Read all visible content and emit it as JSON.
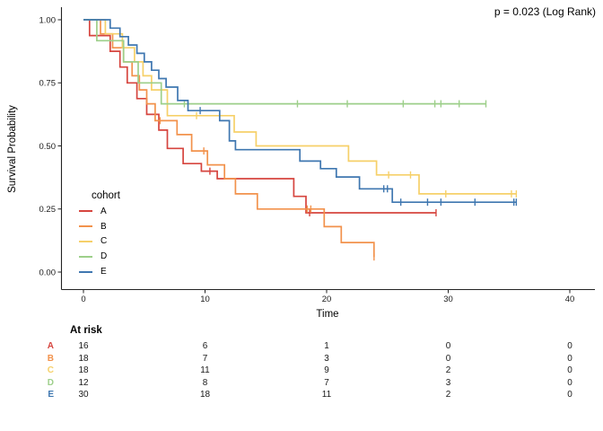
{
  "annotation": {
    "p_value": "p = 0.023 (Log Rank)"
  },
  "axes": {
    "x": {
      "label": "Time",
      "ticks": [
        "0",
        "10",
        "20",
        "30",
        "40"
      ],
      "tick_values": [
        0,
        10,
        20,
        30,
        40
      ]
    },
    "y": {
      "label": "Survival Probability",
      "ticks": [
        "0.00",
        "0.25",
        "0.50",
        "0.75",
        "1.00"
      ],
      "tick_values": [
        0,
        0.25,
        0.5,
        0.75,
        1.0
      ]
    }
  },
  "legend": {
    "title": "cohort"
  },
  "chart_data": {
    "type": "line",
    "subtype": "kaplan-meier-step",
    "title": "",
    "xlabel": "Time",
    "ylabel": "Survival Probability",
    "xlim": [
      0,
      42
    ],
    "ylim": [
      0,
      1.05
    ],
    "grid": false,
    "legend_position": "inside-left",
    "series": [
      {
        "name": "A",
        "color": "#d6453f",
        "steps": [
          [
            0,
            1.0
          ],
          [
            0.5,
            0.9375
          ],
          [
            2.2,
            0.875
          ],
          [
            3.0,
            0.8125
          ],
          [
            3.6,
            0.75
          ],
          [
            4.4,
            0.6875
          ],
          [
            5.2,
            0.625
          ],
          [
            6.2,
            0.5625
          ],
          [
            6.9,
            0.49
          ],
          [
            8.2,
            0.43
          ],
          [
            9.7,
            0.4
          ],
          [
            11.0,
            0.37
          ],
          [
            17.3,
            0.3
          ],
          [
            18.3,
            0.235
          ],
          [
            29.0,
            0.235
          ]
        ],
        "censors": [
          [
            10.4,
            0.4
          ],
          [
            18.6,
            0.235
          ],
          [
            29.0,
            0.235
          ]
        ]
      },
      {
        "name": "B",
        "color": "#f2924c",
        "steps": [
          [
            0,
            1.0
          ],
          [
            1.4,
            0.944
          ],
          [
            2.4,
            0.889
          ],
          [
            3.3,
            0.833
          ],
          [
            4.0,
            0.778
          ],
          [
            4.6,
            0.722
          ],
          [
            5.2,
            0.667
          ],
          [
            5.9,
            0.6
          ],
          [
            7.7,
            0.545
          ],
          [
            8.9,
            0.48
          ],
          [
            10.2,
            0.425
          ],
          [
            11.6,
            0.37
          ],
          [
            12.5,
            0.31
          ],
          [
            14.3,
            0.25
          ],
          [
            19.8,
            0.18
          ],
          [
            21.2,
            0.117
          ],
          [
            23.9,
            0.06
          ]
        ],
        "censors": [
          [
            6.3,
            0.6
          ],
          [
            9.9,
            0.48
          ],
          [
            18.4,
            0.25
          ],
          [
            18.7,
            0.25
          ],
          [
            23.9,
            0.06
          ]
        ]
      },
      {
        "name": "C",
        "color": "#f6d069",
        "steps": [
          [
            0,
            1.0
          ],
          [
            1.8,
            0.944
          ],
          [
            3.2,
            0.889
          ],
          [
            4.2,
            0.833
          ],
          [
            4.9,
            0.778
          ],
          [
            5.6,
            0.722
          ],
          [
            6.9,
            0.62
          ],
          [
            12.4,
            0.555
          ],
          [
            14.2,
            0.5
          ],
          [
            21.8,
            0.44
          ],
          [
            24.1,
            0.385
          ],
          [
            27.6,
            0.31
          ],
          [
            35.6,
            0.31
          ]
        ],
        "censors": [
          [
            9.3,
            0.62
          ],
          [
            25.1,
            0.385
          ],
          [
            26.9,
            0.385
          ],
          [
            29.8,
            0.31
          ],
          [
            35.2,
            0.31
          ],
          [
            35.6,
            0.31
          ]
        ]
      },
      {
        "name": "D",
        "color": "#9dcf8a",
        "steps": [
          [
            0,
            1.0
          ],
          [
            1.1,
            0.917
          ],
          [
            3.3,
            0.833
          ],
          [
            4.5,
            0.75
          ],
          [
            6.4,
            0.667
          ],
          [
            33.1,
            0.667
          ]
        ],
        "censors": [
          [
            8.3,
            0.667
          ],
          [
            17.6,
            0.667
          ],
          [
            21.7,
            0.667
          ],
          [
            26.3,
            0.667
          ],
          [
            28.9,
            0.667
          ],
          [
            29.4,
            0.667
          ],
          [
            30.9,
            0.667
          ],
          [
            33.1,
            0.667
          ]
        ]
      },
      {
        "name": "E",
        "color": "#3f77b0",
        "steps": [
          [
            0,
            1.0
          ],
          [
            2.2,
            0.967
          ],
          [
            3.0,
            0.933
          ],
          [
            3.7,
            0.9
          ],
          [
            4.4,
            0.867
          ],
          [
            5.0,
            0.833
          ],
          [
            5.6,
            0.8
          ],
          [
            6.2,
            0.767
          ],
          [
            6.8,
            0.733
          ],
          [
            7.75,
            0.68
          ],
          [
            8.6,
            0.64
          ],
          [
            11.2,
            0.6
          ],
          [
            12.0,
            0.52
          ],
          [
            12.5,
            0.485
          ],
          [
            17.8,
            0.44
          ],
          [
            19.5,
            0.41
          ],
          [
            20.8,
            0.377
          ],
          [
            22.7,
            0.33
          ],
          [
            25.4,
            0.277
          ],
          [
            35.6,
            0.277
          ]
        ],
        "censors": [
          [
            9.6,
            0.64
          ],
          [
            24.7,
            0.33
          ],
          [
            25.0,
            0.33
          ],
          [
            26.1,
            0.277
          ],
          [
            28.3,
            0.277
          ],
          [
            29.4,
            0.277
          ],
          [
            32.2,
            0.277
          ],
          [
            35.4,
            0.277
          ],
          [
            35.6,
            0.277
          ]
        ]
      }
    ]
  },
  "risk_table": {
    "header": "At risk",
    "time_points": [
      0,
      10,
      20,
      30,
      40
    ],
    "rows": [
      {
        "label": "A",
        "values": [
          "16",
          "6",
          "1",
          "0",
          "0"
        ]
      },
      {
        "label": "B",
        "values": [
          "18",
          "7",
          "3",
          "0",
          "0"
        ]
      },
      {
        "label": "C",
        "values": [
          "18",
          "11",
          "9",
          "2",
          "0"
        ]
      },
      {
        "label": "D",
        "values": [
          "12",
          "8",
          "7",
          "3",
          "0"
        ]
      },
      {
        "label": "E",
        "values": [
          "30",
          "18",
          "11",
          "2",
          "0"
        ]
      }
    ]
  }
}
